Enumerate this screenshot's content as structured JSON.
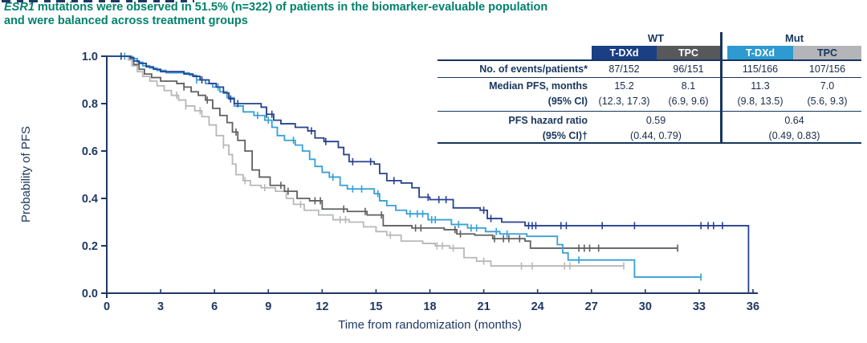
{
  "title": {
    "gene": "ESR1",
    "line1": " mutations were observed in 51.5% (n=322) of patients in the biomarker-evaluable population",
    "line2": "and were balanced across treatment groups"
  },
  "colors": {
    "title_teal": "#00826c",
    "axis_navy": "#1f3864",
    "table_line_navy": "#17365d",
    "wt_tdxd": "#27418f",
    "wt_tpc": "#5f6062",
    "mut_tdxd": "#36a0d6",
    "mut_tpc": "#b6b8ba",
    "hdr_navy_bg": "#1b3f85",
    "hdr_darkgray_bg": "#57585a",
    "hdr_lightblue_bg": "#2d9ad1",
    "hdr_lightgray_bg": "#b3b5b8"
  },
  "table": {
    "group_headers": [
      "WT",
      "Mut"
    ],
    "col_headers": [
      {
        "label": "T-DXd",
        "bg": "#1b3f85",
        "fg": "#ffffff"
      },
      {
        "label": "TPC",
        "bg": "#57585a",
        "fg": "#ffffff"
      },
      {
        "label": "T-DXd",
        "bg": "#2d9ad1",
        "fg": "#ffffff"
      },
      {
        "label": "TPC",
        "bg": "#b3b5b8",
        "fg": "#17365d"
      }
    ],
    "events_row": {
      "label": "No. of events/patients*",
      "values": [
        "87/152",
        "96/151",
        "115/166",
        "107/156"
      ]
    },
    "median_row": {
      "label": "Median PFS, months",
      "label2": "(95% CI)",
      "medians": [
        "15.2",
        "8.1",
        "11.3",
        "7.0"
      ],
      "cis": [
        "(12.3, 17.3)",
        "(6.9, 9.6)",
        "(9.8, 13.5)",
        "(5.6, 9.3)"
      ]
    },
    "hr_row": {
      "label": "PFS hazard ratio",
      "label2": "(95% CI)†",
      "wt": {
        "line1": "0.59",
        "line2": "(0.44, 0.79)"
      },
      "mut": {
        "line1": "0.64",
        "line2": "(0.49, 0.83)"
      }
    }
  },
  "chart_data": {
    "type": "line",
    "subtype": "kaplan-meier-step",
    "xlabel": "Time from randomization (months)",
    "ylabel": "Probability of PFS",
    "xlim": [
      0,
      36
    ],
    "ylim": [
      0.0,
      1.0
    ],
    "xticks": [
      0,
      3,
      6,
      9,
      12,
      15,
      18,
      21,
      24,
      27,
      30,
      33,
      36
    ],
    "yticks": [
      "0.0",
      "0.2",
      "0.4",
      "0.6",
      "0.8",
      "1.0"
    ],
    "grid": false,
    "legend": "none (table serves as legend)",
    "series": [
      {
        "name": "Mut TPC",
        "color": "#b6b8ba",
        "points": [
          [
            0,
            1
          ],
          [
            1.2,
            0.985
          ],
          [
            1.4,
            0.96
          ],
          [
            1.7,
            0.935
          ],
          [
            2.0,
            0.915
          ],
          [
            2.4,
            0.895
          ],
          [
            2.8,
            0.875
          ],
          [
            3.2,
            0.855
          ],
          [
            3.6,
            0.835
          ],
          [
            4.0,
            0.815
          ],
          [
            4.4,
            0.79
          ],
          [
            4.9,
            0.77
          ],
          [
            5.3,
            0.745
          ],
          [
            5.7,
            0.71
          ],
          [
            6.1,
            0.665
          ],
          [
            6.5,
            0.625
          ],
          [
            6.8,
            0.585
          ],
          [
            7.0,
            0.545
          ],
          [
            7.2,
            0.5
          ],
          [
            7.6,
            0.475
          ],
          [
            8.0,
            0.455
          ],
          [
            8.6,
            0.445
          ],
          [
            9.4,
            0.43
          ],
          [
            10.0,
            0.4
          ],
          [
            10.4,
            0.375
          ],
          [
            11.0,
            0.35
          ],
          [
            11.8,
            0.33
          ],
          [
            12.6,
            0.31
          ],
          [
            13.5,
            0.3
          ],
          [
            14.3,
            0.28
          ],
          [
            15.0,
            0.26
          ],
          [
            15.6,
            0.245
          ],
          [
            16.4,
            0.22
          ],
          [
            17.6,
            0.21
          ],
          [
            18.3,
            0.2
          ],
          [
            19.1,
            0.19
          ],
          [
            19.9,
            0.15
          ],
          [
            20.6,
            0.135
          ],
          [
            21.4,
            0.115
          ],
          [
            28.8,
            0.115
          ]
        ],
        "censors": [
          3.9,
          4.4,
          5.2,
          6.5,
          7.7,
          8.8,
          10.8,
          13.0,
          13.3,
          15.8,
          18.4,
          18.7,
          19.3,
          21.0,
          23.1,
          23.7,
          25.5,
          25.8,
          28.8
        ]
      },
      {
        "name": "WT TPC",
        "color": "#5f6062",
        "points": [
          [
            0,
            1
          ],
          [
            1.3,
            0.99
          ],
          [
            1.5,
            0.965
          ],
          [
            1.8,
            0.945
          ],
          [
            2.1,
            0.925
          ],
          [
            2.5,
            0.91
          ],
          [
            3.0,
            0.895
          ],
          [
            3.9,
            0.885
          ],
          [
            4.3,
            0.87
          ],
          [
            4.7,
            0.85
          ],
          [
            5.1,
            0.835
          ],
          [
            5.5,
            0.815
          ],
          [
            5.9,
            0.78
          ],
          [
            6.3,
            0.75
          ],
          [
            6.7,
            0.72
          ],
          [
            7.0,
            0.68
          ],
          [
            7.3,
            0.645
          ],
          [
            7.7,
            0.6
          ],
          [
            8.1,
            0.52
          ],
          [
            8.5,
            0.49
          ],
          [
            9.1,
            0.455
          ],
          [
            9.9,
            0.43
          ],
          [
            10.6,
            0.4
          ],
          [
            11.3,
            0.39
          ],
          [
            12.0,
            0.355
          ],
          [
            13.4,
            0.345
          ],
          [
            14.5,
            0.33
          ],
          [
            15.4,
            0.285
          ],
          [
            17.0,
            0.275
          ],
          [
            18.8,
            0.268
          ],
          [
            19.5,
            0.25
          ],
          [
            20.5,
            0.245
          ],
          [
            21.5,
            0.23
          ],
          [
            23.3,
            0.22
          ],
          [
            23.6,
            0.19
          ],
          [
            31.8,
            0.19
          ]
        ],
        "censors": [
          4.3,
          5.6,
          7.2,
          9.7,
          10.1,
          11.6,
          11.9,
          13.2,
          14.4,
          15.3,
          17.2,
          17.5,
          19.4,
          19.7,
          21.6,
          22.1,
          22.4,
          23.0,
          26.3,
          26.6,
          26.9,
          27.4,
          31.8
        ]
      },
      {
        "name": "Mut T-DXd",
        "color": "#36a0d6",
        "points": [
          [
            0,
            1
          ],
          [
            1.4,
            0.99
          ],
          [
            1.7,
            0.975
          ],
          [
            2.0,
            0.96
          ],
          [
            2.4,
            0.95
          ],
          [
            2.8,
            0.94
          ],
          [
            3.3,
            0.93
          ],
          [
            4.6,
            0.92
          ],
          [
            5.0,
            0.9
          ],
          [
            5.5,
            0.885
          ],
          [
            5.9,
            0.87
          ],
          [
            6.3,
            0.85
          ],
          [
            6.7,
            0.825
          ],
          [
            7.1,
            0.79
          ],
          [
            7.6,
            0.765
          ],
          [
            8.2,
            0.75
          ],
          [
            8.8,
            0.73
          ],
          [
            9.2,
            0.7
          ],
          [
            9.5,
            0.665
          ],
          [
            9.9,
            0.645
          ],
          [
            10.5,
            0.625
          ],
          [
            10.9,
            0.6
          ],
          [
            11.3,
            0.565
          ],
          [
            11.6,
            0.535
          ],
          [
            12.0,
            0.51
          ],
          [
            12.4,
            0.49
          ],
          [
            13.0,
            0.455
          ],
          [
            13.4,
            0.44
          ],
          [
            14.9,
            0.42
          ],
          [
            15.2,
            0.39
          ],
          [
            15.6,
            0.37
          ],
          [
            16.1,
            0.35
          ],
          [
            16.7,
            0.335
          ],
          [
            17.9,
            0.31
          ],
          [
            19.2,
            0.29
          ],
          [
            20.1,
            0.275
          ],
          [
            21.1,
            0.26
          ],
          [
            21.9,
            0.25
          ],
          [
            23.4,
            0.24
          ],
          [
            25.1,
            0.205
          ],
          [
            25.4,
            0.17
          ],
          [
            25.7,
            0.14
          ],
          [
            29.4,
            0.068
          ],
          [
            33.1,
            0.068
          ]
        ],
        "censors": [
          1.0,
          5.0,
          6.2,
          8.4,
          9.0,
          10.4,
          12.6,
          13.7,
          14.2,
          15.1,
          16.9,
          17.3,
          17.6,
          18.1,
          18.3,
          19.6,
          20.3,
          20.6,
          21.7,
          22.3,
          26.3,
          33.1
        ]
      },
      {
        "name": "WT T-DXd",
        "color": "#27418f",
        "points": [
          [
            0,
            1
          ],
          [
            1.3,
            0.995
          ],
          [
            1.5,
            0.98
          ],
          [
            1.8,
            0.97
          ],
          [
            2.2,
            0.955
          ],
          [
            2.6,
            0.945
          ],
          [
            3.0,
            0.935
          ],
          [
            4.3,
            0.925
          ],
          [
            4.8,
            0.915
          ],
          [
            5.2,
            0.9
          ],
          [
            5.7,
            0.885
          ],
          [
            6.1,
            0.87
          ],
          [
            6.5,
            0.845
          ],
          [
            6.8,
            0.82
          ],
          [
            7.1,
            0.8
          ],
          [
            8.6,
            0.785
          ],
          [
            8.9,
            0.755
          ],
          [
            9.3,
            0.73
          ],
          [
            9.7,
            0.715
          ],
          [
            10.5,
            0.7
          ],
          [
            11.2,
            0.685
          ],
          [
            11.6,
            0.655
          ],
          [
            12.1,
            0.64
          ],
          [
            12.9,
            0.615
          ],
          [
            13.2,
            0.585
          ],
          [
            13.5,
            0.555
          ],
          [
            14.9,
            0.545
          ],
          [
            15.2,
            0.505
          ],
          [
            15.6,
            0.475
          ],
          [
            16.4,
            0.465
          ],
          [
            17.0,
            0.445
          ],
          [
            17.4,
            0.405
          ],
          [
            18.0,
            0.395
          ],
          [
            19.3,
            0.36
          ],
          [
            20.8,
            0.35
          ],
          [
            21.2,
            0.315
          ],
          [
            22.0,
            0.3
          ],
          [
            23.3,
            0.285
          ],
          [
            35.75,
            0.0
          ]
        ],
        "censors": [
          0.8,
          5.3,
          6.9,
          7.3,
          8.9,
          9.2,
          11.4,
          12.2,
          13.7,
          14.7,
          16.0,
          17.9,
          18.5,
          18.9,
          21.0,
          21.4,
          23.5,
          23.7,
          23.9,
          25.3,
          25.6,
          27.6,
          29.4,
          33.1,
          33.5,
          33.8,
          34.3
        ]
      }
    ]
  }
}
